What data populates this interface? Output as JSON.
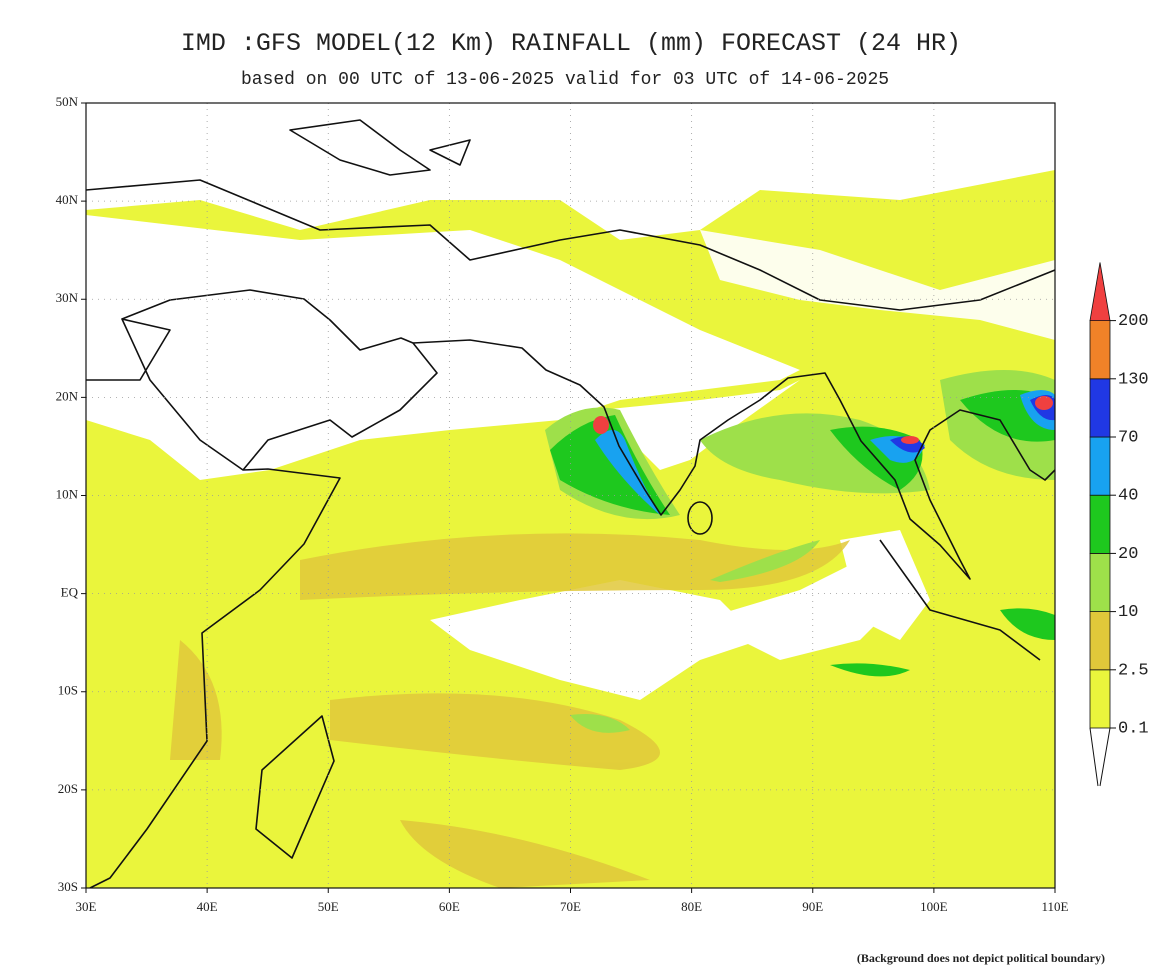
{
  "header": {
    "title": "IMD :GFS MODEL(12 Km) RAINFALL (mm) FORECAST (24 HR)",
    "subtitle": "based on 00 UTC of 13-06-2025 valid for 03 UTC of 14-06-2025"
  },
  "map": {
    "lat_ticks": [
      {
        "value": 50,
        "label": "50N"
      },
      {
        "value": 40,
        "label": "40N"
      },
      {
        "value": 30,
        "label": "30N"
      },
      {
        "value": 20,
        "label": "20N"
      },
      {
        "value": 10,
        "label": "10N"
      },
      {
        "value": 0,
        "label": "EQ"
      },
      {
        "value": -10,
        "label": "10S"
      },
      {
        "value": -20,
        "label": "20S"
      },
      {
        "value": -30,
        "label": "30S"
      }
    ],
    "lon_ticks": [
      {
        "value": 30,
        "label": "30E"
      },
      {
        "value": 40,
        "label": "40E"
      },
      {
        "value": 50,
        "label": "50E"
      },
      {
        "value": 60,
        "label": "60E"
      },
      {
        "value": 70,
        "label": "70E"
      },
      {
        "value": 80,
        "label": "80E"
      },
      {
        "value": 90,
        "label": "90E"
      },
      {
        "value": 100,
        "label": "100E"
      },
      {
        "value": 110,
        "label": "110E"
      }
    ]
  },
  "legend": {
    "levels": [
      0.1,
      2.5,
      10,
      20,
      40,
      70,
      130,
      200
    ],
    "colors": [
      "#eaf53c",
      "#e0c83a",
      "#9ee04a",
      "#1ec81e",
      "#18a2f0",
      "#2038e4",
      "#f08228",
      "#f04040"
    ]
  },
  "footnote": "(Background does not depict political boundary)"
}
